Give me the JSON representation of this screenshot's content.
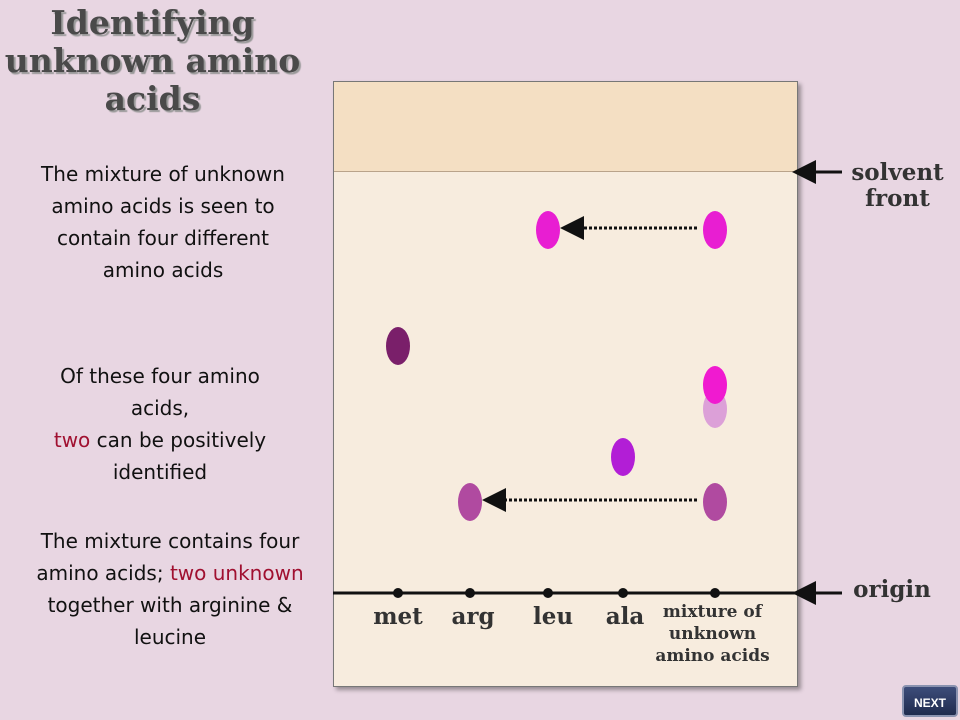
{
  "title": "Identifying unknown amino acids",
  "paragraphs": {
    "p1": "The mixture of unknown amino acids is seen to contain four different amino acids",
    "p2_a": "Of these four amino acids,",
    "p2_red": "two",
    "p2_b": "can be positively identified",
    "p3_a": "The mixture contains four amino acids;",
    "p3_red": "two unknown",
    "p3_b": "together with arginine & leucine"
  },
  "labels": {
    "solvent_front": "solvent front",
    "origin": "origin",
    "lanes": [
      "met",
      "arg",
      "leu",
      "ala"
    ],
    "mixture": "mixture of unknown amino acids"
  },
  "colors": {
    "met_spot": "#7a1f6a",
    "arg_spot": "#b04aa0",
    "leu_spot": "#e81ed2",
    "ala_spot": "#b21ed6",
    "faint_spot": "#dca0d8"
  },
  "nav": {
    "next_label": "NEXT"
  }
}
